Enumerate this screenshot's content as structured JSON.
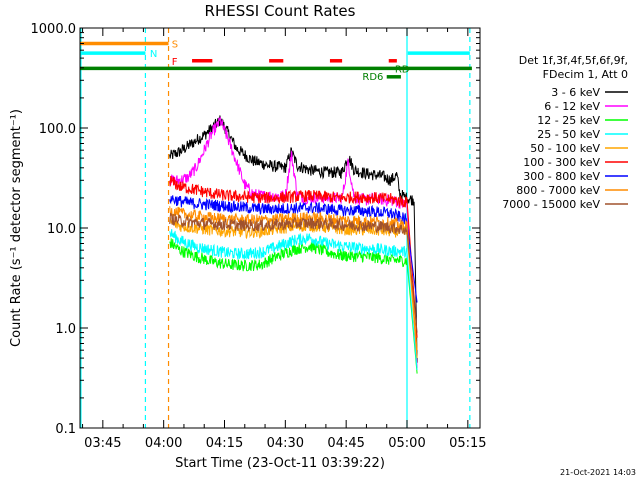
{
  "chart_data": {
    "type": "line",
    "title": "RHESSI Count Rates",
    "xlabel": "Start Time (23-Oct-11 03:39:22)",
    "ylabel": "Count Rate (s⁻¹ detector segment⁻¹)",
    "yscale": "log",
    "ylim": [
      0.1,
      1000
    ],
    "xlim_minutes": [
      219.37,
      318.0
    ],
    "x_unit": "minutes since 00:00 UT, 23-Oct-2011",
    "x_ticks": [
      {
        "t": 225,
        "label": "03:45"
      },
      {
        "t": 240,
        "label": "04:00"
      },
      {
        "t": 255,
        "label": "04:15"
      },
      {
        "t": 270,
        "label": "04:30"
      },
      {
        "t": 285,
        "label": "04:45"
      },
      {
        "t": 300,
        "label": "05:00"
      },
      {
        "t": 315,
        "label": "05:15"
      }
    ],
    "y_ticks": [
      {
        "v": 0.1,
        "label": "0.1"
      },
      {
        "v": 1,
        "label": "1.0"
      },
      {
        "v": 10,
        "label": "10.0"
      },
      {
        "v": 100,
        "label": "100.0"
      },
      {
        "v": 1000,
        "label": "1000.0"
      }
    ],
    "legend_header": [
      "Det 1f,3f,4f,5f,6f,9f,",
      "FDecim 1, Att 0"
    ],
    "series": [
      {
        "name": "3 - 6 keV",
        "color": "#000000",
        "t": [
          241.5,
          244,
          248,
          250,
          252,
          254,
          256,
          258,
          262,
          266,
          270,
          271.5,
          273,
          276,
          280,
          284,
          285.5,
          287,
          290,
          294,
          296,
          297.5,
          298.2,
          299.8,
          301.8,
          302.5
        ],
        "v": [
          52,
          58,
          75,
          85,
          100,
          120,
          88,
          62,
          47,
          42,
          40,
          58,
          42,
          38,
          36,
          36,
          52,
          38,
          35,
          33,
          30,
          34,
          22,
          20,
          19,
          0.45
        ]
      },
      {
        "name": "6 - 12 keV",
        "color": "#ff00ff",
        "t": [
          241.5,
          244,
          246,
          248,
          250,
          252,
          254,
          256,
          258,
          260,
          262,
          264,
          266,
          268,
          270,
          271.5,
          273,
          275,
          280,
          284,
          285.5,
          287,
          290,
          292,
          294.5,
          296,
          298,
          300,
          302.5
        ],
        "v": [
          30,
          30,
          32,
          40,
          60,
          90,
          118,
          75,
          45,
          27,
          22,
          21,
          21,
          21,
          21,
          55,
          21,
          20,
          20,
          20,
          46,
          20,
          19,
          20,
          19,
          19,
          18,
          17,
          0.4
        ]
      },
      {
        "name": "12 - 25 keV",
        "color": "#00ff00",
        "t": [
          241.5,
          244,
          248,
          252,
          256,
          260,
          264,
          268,
          272,
          276,
          280,
          284,
          288,
          292,
          296,
          300,
          302.5
        ],
        "v": [
          7.2,
          6.0,
          5.2,
          4.6,
          4.3,
          4.2,
          4.3,
          5.2,
          6.1,
          6.6,
          5.8,
          5.3,
          5.2,
          5.1,
          4.8,
          4.7,
          0.35
        ]
      },
      {
        "name": "25 - 50 keV",
        "color": "#00ffff",
        "t": [
          241.5,
          244,
          248,
          252,
          256,
          260,
          264,
          268,
          272,
          276,
          280,
          284,
          288,
          292,
          296,
          300,
          302.5
        ],
        "v": [
          9.0,
          7.5,
          6.5,
          6.0,
          5.6,
          5.5,
          5.7,
          6.5,
          7.5,
          8.0,
          7.0,
          6.6,
          6.3,
          6.2,
          5.9,
          5.8,
          0.38
        ]
      },
      {
        "name": "50 - 100 keV",
        "color": "#ffa500",
        "t": [
          241.5,
          244,
          248,
          252,
          256,
          260,
          264,
          268,
          272,
          276,
          280,
          284,
          288,
          292,
          296,
          300,
          302.5
        ],
        "v": [
          11.5,
          10.5,
          10.0,
          9.5,
          9.3,
          9.1,
          9.2,
          9.8,
          10.3,
          10.6,
          10.2,
          9.7,
          9.6,
          9.5,
          9.3,
          9.0,
          0.5
        ]
      },
      {
        "name": "100 - 300 keV",
        "color": "#ff0000",
        "t": [
          241.5,
          244,
          248,
          252,
          256,
          260,
          264,
          268,
          272,
          276,
          280,
          284,
          288,
          292,
          296,
          300,
          302.5
        ],
        "v": [
          30,
          26,
          24,
          22,
          21,
          20.5,
          20,
          20,
          20.5,
          21,
          20.5,
          20,
          20.5,
          20,
          19.5,
          18,
          0.8
        ]
      },
      {
        "name": "300 - 800 keV",
        "color": "#0000ff",
        "t": [
          241.5,
          244,
          248,
          252,
          256,
          260,
          264,
          268,
          272,
          276,
          280,
          284,
          288,
          292,
          296,
          300,
          302.5
        ],
        "v": [
          20,
          18.5,
          17.5,
          17,
          16.5,
          16,
          15.5,
          15.5,
          15.7,
          16,
          15.5,
          15,
          15,
          14.5,
          14,
          12,
          1.8
        ]
      },
      {
        "name": "800 - 7000 keV",
        "color": "#ff8c00",
        "t": [
          241.5,
          244,
          248,
          252,
          256,
          260,
          264,
          268,
          272,
          276,
          280,
          284,
          288,
          292,
          296,
          300,
          302.5
        ],
        "v": [
          15,
          14,
          13.2,
          12.6,
          12.2,
          12,
          12,
          12.2,
          12.5,
          12.7,
          12.4,
          12,
          11.8,
          11.5,
          11.2,
          10.5,
          0.6
        ]
      },
      {
        "name": "7000 - 15000 keV",
        "color": "#a0522d",
        "t": [
          241.5,
          244,
          248,
          252,
          256,
          260,
          264,
          268,
          272,
          276,
          280,
          284,
          288,
          292,
          296,
          300,
          302.5
        ],
        "v": [
          12.5,
          11.8,
          11.3,
          11,
          10.8,
          10.6,
          10.6,
          10.8,
          11,
          11.2,
          11,
          10.8,
          10.6,
          10.4,
          10.2,
          9.5,
          0.9
        ]
      }
    ],
    "state_bars": [
      {
        "label": "S",
        "color": "#ff8c00",
        "level": 700,
        "segments": [
          [
            219.37,
            241.2
          ]
        ],
        "label_t": 242.0,
        "label_level": 700
      },
      {
        "label": "N",
        "color": "#00ffff",
        "level": 560,
        "segments": [
          [
            219.37,
            235.5
          ],
          [
            300.2,
            315.5
          ]
        ],
        "label_t": 236.6,
        "label_level": 560
      },
      {
        "label": "F",
        "color": "#ff0000",
        "level": 470,
        "segments": [
          [
            247.0,
            252.0
          ],
          [
            266.0,
            269.5
          ],
          [
            281.0,
            284.0
          ],
          [
            295.5,
            297.5
          ]
        ],
        "label_t": 242.0,
        "label_level": 470
      },
      {
        "label": "RD",
        "color": "#008000",
        "level": 395,
        "segments": [
          [
            219.37,
            316.0
          ]
        ],
        "label_t": 297.0,
        "label_level": 395
      },
      {
        "label": "RD6",
        "color": "#008000",
        "level": 325,
        "segments": [
          [
            295.0,
            298.5
          ]
        ],
        "label_t": 289.0,
        "label_level": 330
      }
    ],
    "vertical_markers": [
      {
        "t": 219.6,
        "color": "#00ffff",
        "style": "solid"
      },
      {
        "t": 235.5,
        "color": "#00ffff",
        "style": "dashed"
      },
      {
        "t": 241.2,
        "color": "#ff8c00",
        "style": "dashed"
      },
      {
        "t": 300.0,
        "color": "#00ffff",
        "style": "solid"
      },
      {
        "t": 315.5,
        "color": "#00ffff",
        "style": "dashed"
      }
    ],
    "footer_date": "21-Oct-2021 14:03"
  }
}
